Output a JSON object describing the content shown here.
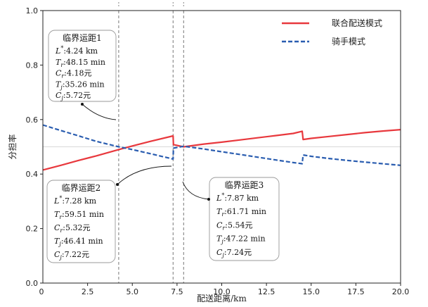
{
  "chart_data": {
    "type": "line",
    "xlabel": "配送距离/km",
    "ylabel": "分担率",
    "xlim": [
      0,
      20
    ],
    "ylim": [
      0,
      1.0
    ],
    "xticks": [
      "2.5",
      "5.0",
      "7.5",
      "10.0",
      "12.5",
      "15.0",
      "17.5",
      "20.0"
    ],
    "yticks": [
      "0.0",
      "0.2",
      "0.4",
      "0.6",
      "0.8",
      "1.0"
    ],
    "tick_label_zero": "0",
    "grid": false,
    "legend_position": "top-right",
    "reference_line_y": 0.5,
    "series": [
      {
        "name": "联合配送模式",
        "color": "#e8383d",
        "style": "solid",
        "points": [
          [
            0,
            0.415
          ],
          [
            1.0,
            0.432
          ],
          [
            2.0,
            0.45
          ],
          [
            3.0,
            0.467
          ],
          [
            4.24,
            0.49
          ],
          [
            5.0,
            0.503
          ],
          [
            6.0,
            0.52
          ],
          [
            7.28,
            0.54
          ],
          [
            7.3,
            0.508
          ],
          [
            7.87,
            0.5
          ],
          [
            9.0,
            0.51
          ],
          [
            10.0,
            0.517
          ],
          [
            11.0,
            0.525
          ],
          [
            12.0,
            0.533
          ],
          [
            13.0,
            0.541
          ],
          [
            14.0,
            0.549
          ],
          [
            14.5,
            0.557
          ],
          [
            14.55,
            0.527
          ],
          [
            15.0,
            0.531
          ],
          [
            16.0,
            0.538
          ],
          [
            17.0,
            0.545
          ],
          [
            18.0,
            0.552
          ],
          [
            19.0,
            0.558
          ],
          [
            20.0,
            0.563
          ]
        ]
      },
      {
        "name": "骑手模式",
        "color": "#2a5db0",
        "style": "dashed",
        "points": [
          [
            0,
            0.58
          ],
          [
            1.0,
            0.56
          ],
          [
            2.0,
            0.54
          ],
          [
            3.0,
            0.52
          ],
          [
            4.24,
            0.5
          ],
          [
            5.0,
            0.49
          ],
          [
            6.0,
            0.475
          ],
          [
            7.28,
            0.455
          ],
          [
            7.3,
            0.495
          ],
          [
            7.87,
            0.502
          ],
          [
            9.0,
            0.492
          ],
          [
            10.0,
            0.482
          ],
          [
            11.0,
            0.472
          ],
          [
            12.0,
            0.462
          ],
          [
            13.0,
            0.452
          ],
          [
            14.0,
            0.442
          ],
          [
            14.5,
            0.438
          ],
          [
            14.55,
            0.47
          ],
          [
            15.0,
            0.465
          ],
          [
            16.0,
            0.457
          ],
          [
            17.0,
            0.45
          ],
          [
            18.0,
            0.444
          ],
          [
            19.0,
            0.438
          ],
          [
            20.0,
            0.432
          ]
        ]
      }
    ],
    "vertical_lines": [
      4.24,
      7.28,
      7.87
    ],
    "annotations": [
      {
        "title": "临界运距1",
        "lines": [
          "L*:4.24 km",
          "Tr:48.15 min",
          "Cr:4.18元",
          "Tj:35.26 min",
          "Cj:5.72元"
        ]
      },
      {
        "title": "临界运距2",
        "lines": [
          "L*:7.28 km",
          "Tr:59.51 min",
          "Cr:5.32元",
          "Tj:46.41 min",
          "Cj:7.22元"
        ]
      },
      {
        "title": "临界运距3",
        "lines": [
          "L*:7.87 km",
          "Tr:61.71 min",
          "Cr:5.54元",
          "Tj:47.22 min",
          "Cj:7.24元"
        ]
      }
    ]
  }
}
